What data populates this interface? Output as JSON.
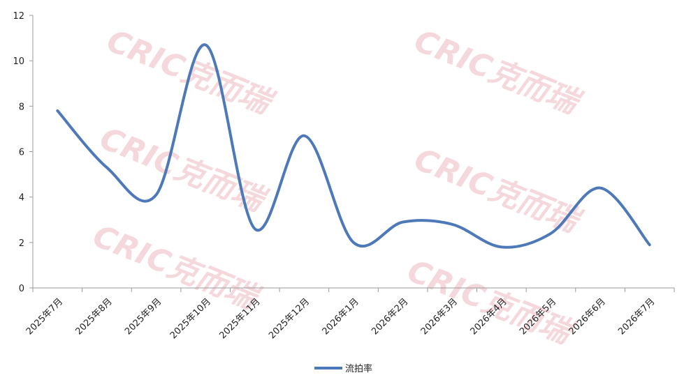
{
  "chart_data": {
    "type": "line",
    "categories": [
      "2025年7月",
      "2025年8月",
      "2025年9月",
      "2025年10月",
      "2025年11月",
      "2025年12月",
      "2026年1月",
      "2026年2月",
      "2026年3月",
      "2026年4月",
      "2026年5月",
      "2026年6月",
      "2026年7月"
    ],
    "series": [
      {
        "name": "流拍率",
        "color": "#4e79b8",
        "values": [
          7.8,
          5.3,
          4.1,
          10.7,
          2.6,
          6.7,
          2.0,
          2.9,
          2.8,
          1.8,
          2.4,
          4.4,
          1.9
        ]
      }
    ],
    "ylim": [
      0,
      12
    ],
    "yticks": [
      0,
      2,
      4,
      6,
      8,
      10,
      12
    ],
    "legend": "bottom",
    "smooth": true,
    "watermark": "CRIC克而瑞"
  }
}
